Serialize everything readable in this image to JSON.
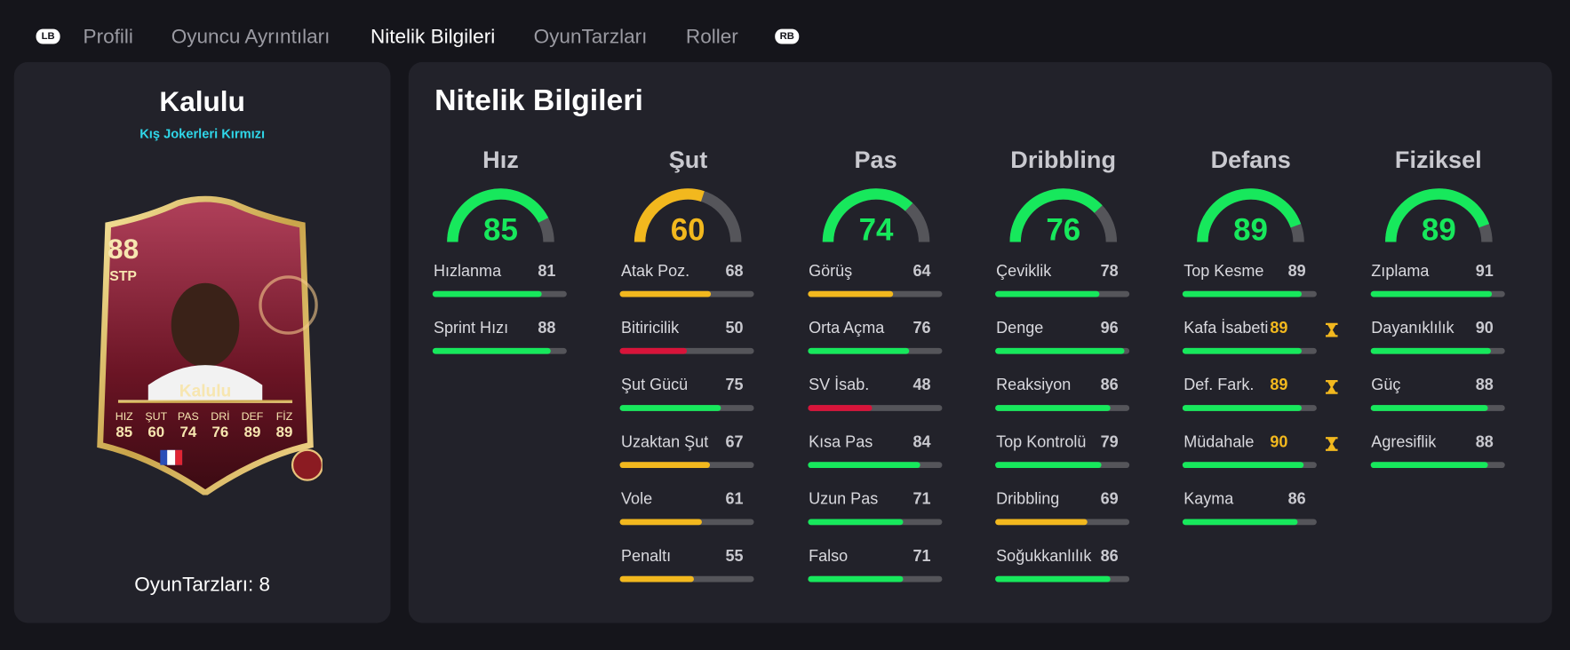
{
  "nav": {
    "lb": "LB",
    "tabs": [
      "Profili",
      "Oyuncu Ayrıntıları",
      "Nitelik Bilgileri",
      "OyunTarzları",
      "Roller"
    ],
    "active": 2,
    "rb": "RB"
  },
  "player": {
    "name": "Kalulu",
    "version": "Kış Jokerleri Kırmızı",
    "playstyles_label": "OyunTarzları: 8"
  },
  "card": {
    "rating": 88,
    "position": "STP",
    "name": "Kalulu",
    "stats": [
      {
        "label": "HIZ",
        "value": 85
      },
      {
        "label": "ŞUT",
        "value": 60
      },
      {
        "label": "PAS",
        "value": 74
      },
      {
        "label": "DRİ",
        "value": 76
      },
      {
        "label": "DEF",
        "value": 89
      },
      {
        "label": "FİZ",
        "value": 89
      }
    ]
  },
  "attributes": {
    "title": "Nitelik Bilgileri",
    "groups": [
      {
        "name": "Hız",
        "value": 85,
        "stats": [
          {
            "label": "Hızlanma",
            "value": 81
          },
          {
            "label": "Sprint Hızı",
            "value": 88
          }
        ]
      },
      {
        "name": "Şut",
        "value": 60,
        "stats": [
          {
            "label": "Atak Poz.",
            "value": 68
          },
          {
            "label": "Bitiricilik",
            "value": 50
          },
          {
            "label": "Şut Gücü",
            "value": 75
          },
          {
            "label": "Uzaktan Şut",
            "value": 67
          },
          {
            "label": "Vole",
            "value": 61
          },
          {
            "label": "Penaltı",
            "value": 55
          }
        ]
      },
      {
        "name": "Pas",
        "value": 74,
        "stats": [
          {
            "label": "Görüş",
            "value": 64
          },
          {
            "label": "Orta Açma",
            "value": 76
          },
          {
            "label": "SV İsab.",
            "value": 48
          },
          {
            "label": "Kısa Pas",
            "value": 84
          },
          {
            "label": "Uzun Pas",
            "value": 71
          },
          {
            "label": "Falso",
            "value": 71
          }
        ]
      },
      {
        "name": "Dribbling",
        "value": 76,
        "stats": [
          {
            "label": "Çeviklik",
            "value": 78
          },
          {
            "label": "Denge",
            "value": 96
          },
          {
            "label": "Reaksiyon",
            "value": 86
          },
          {
            "label": "Top Kontrolü",
            "value": 79
          },
          {
            "label": "Dribbling",
            "value": 69
          },
          {
            "label": "Soğukkanlılık",
            "value": 86
          }
        ]
      },
      {
        "name": "Defans",
        "value": 89,
        "stats": [
          {
            "label": "Top Kesme",
            "value": 89
          },
          {
            "label": "Kafa İsabeti",
            "value": 89,
            "boosted": true
          },
          {
            "label": "Def. Fark.",
            "value": 89,
            "boosted": true
          },
          {
            "label": "Müdahale",
            "value": 90,
            "boosted": true
          },
          {
            "label": "Kayma",
            "value": 86
          }
        ]
      },
      {
        "name": "Fiziksel",
        "value": 89,
        "stats": [
          {
            "label": "Zıplama",
            "value": 91
          },
          {
            "label": "Dayanıklılık",
            "value": 90
          },
          {
            "label": "Güç",
            "value": 88
          },
          {
            "label": "Agresiflik",
            "value": 88
          }
        ]
      }
    ]
  }
}
